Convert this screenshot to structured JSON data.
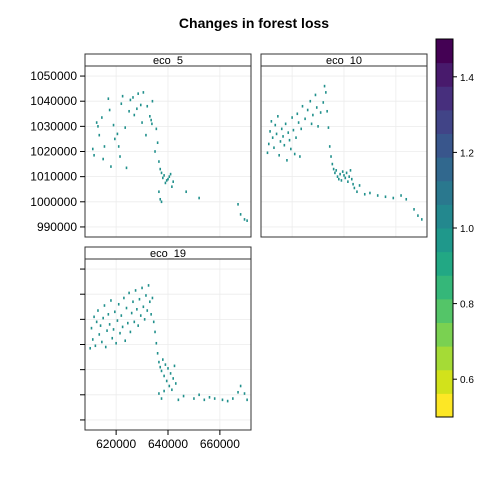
{
  "chart_data": {
    "type": "scatter",
    "title": "Changes in forest loss",
    "xlabel": "",
    "ylabel": "",
    "xlim": [
      608000,
      672000
    ],
    "ylim": [
      986000,
      1054000
    ],
    "x_ticks": [
      620000,
      640000,
      660000
    ],
    "y_ticks": [
      990000,
      1000000,
      1010000,
      1020000,
      1030000,
      1040000,
      1050000
    ],
    "point_color": "#21908C",
    "grid": true,
    "panels": [
      {
        "name": "eco_5",
        "points": [
          [
            611000,
            1021000
          ],
          [
            611500,
            1018500
          ],
          [
            612500,
            1031500
          ],
          [
            613000,
            1030000
          ],
          [
            613500,
            1026500
          ],
          [
            614500,
            1033500
          ],
          [
            615000,
            1017000
          ],
          [
            615500,
            1022000
          ],
          [
            617000,
            1041000
          ],
          [
            617500,
            1036500
          ],
          [
            618000,
            1014000
          ],
          [
            619000,
            1030500
          ],
          [
            619500,
            1025000
          ],
          [
            620500,
            1027000
          ],
          [
            621000,
            1022000
          ],
          [
            621500,
            1018000
          ],
          [
            622000,
            1039000
          ],
          [
            622500,
            1042000
          ],
          [
            623500,
            1029500
          ],
          [
            624000,
            1013500
          ],
          [
            625000,
            1036000
          ],
          [
            625500,
            1040500
          ],
          [
            626500,
            1041500
          ],
          [
            627000,
            1034500
          ],
          [
            628000,
            1037000
          ],
          [
            628500,
            1043000
          ],
          [
            629500,
            1038500
          ],
          [
            630000,
            1031500
          ],
          [
            630500,
            1043500
          ],
          [
            631500,
            1026500
          ],
          [
            632000,
            1038000
          ],
          [
            633000,
            1034000
          ],
          [
            633500,
            1032500
          ],
          [
            633800,
            1031000
          ],
          [
            634000,
            1040000
          ],
          [
            635000,
            1020000
          ],
          [
            635500,
            1029000
          ],
          [
            636000,
            1023500
          ],
          [
            636500,
            1016000
          ],
          [
            637000,
            1013000
          ],
          [
            637500,
            1011500
          ],
          [
            638000,
            1009500
          ],
          [
            638500,
            1010500
          ],
          [
            639000,
            1007500
          ],
          [
            639500,
            1008500
          ],
          [
            640000,
            1009000
          ],
          [
            640500,
            1010000
          ],
          [
            641000,
            1011000
          ],
          [
            641500,
            1006000
          ],
          [
            642000,
            1008000
          ],
          [
            636500,
            1004000
          ],
          [
            637000,
            1001000
          ],
          [
            637500,
            1000000
          ],
          [
            647000,
            1004000
          ],
          [
            652000,
            1001500
          ],
          [
            667000,
            999000
          ],
          [
            668000,
            995000
          ],
          [
            669500,
            993000
          ],
          [
            670500,
            992500
          ]
        ]
      },
      {
        "name": "eco_10",
        "points": [
          [
            610500,
            1019500
          ],
          [
            611000,
            1023000
          ],
          [
            611500,
            1028000
          ],
          [
            612000,
            1032000
          ],
          [
            612500,
            1025500
          ],
          [
            613000,
            1021500
          ],
          [
            613500,
            1030500
          ],
          [
            614000,
            1027000
          ],
          [
            614500,
            1034000
          ],
          [
            615000,
            1018500
          ],
          [
            615500,
            1024000
          ],
          [
            616000,
            1029000
          ],
          [
            616500,
            1026000
          ],
          [
            617000,
            1022500
          ],
          [
            617500,
            1031000
          ],
          [
            618000,
            1016500
          ],
          [
            618500,
            1027500
          ],
          [
            619000,
            1024500
          ],
          [
            619500,
            1021000
          ],
          [
            620000,
            1033500
          ],
          [
            620500,
            1028500
          ],
          [
            621000,
            1019000
          ],
          [
            621500,
            1025500
          ],
          [
            622000,
            1035000
          ],
          [
            622500,
            1031500
          ],
          [
            623000,
            1018000
          ],
          [
            623500,
            1029000
          ],
          [
            624000,
            1038000
          ],
          [
            625000,
            1033000
          ],
          [
            626000,
            1036500
          ],
          [
            627000,
            1040000
          ],
          [
            627500,
            1031000
          ],
          [
            628000,
            1034500
          ],
          [
            629000,
            1042500
          ],
          [
            629500,
            1037500
          ],
          [
            630000,
            1030000
          ],
          [
            631000,
            1035500
          ],
          [
            632000,
            1039500
          ],
          [
            632500,
            1046000
          ],
          [
            633000,
            1043500
          ],
          [
            633500,
            1036000
          ],
          [
            634000,
            1029500
          ],
          [
            634500,
            1022000
          ],
          [
            635000,
            1018000
          ],
          [
            635500,
            1015000
          ],
          [
            636000,
            1013000
          ],
          [
            636500,
            1011500
          ],
          [
            637000,
            1012500
          ],
          [
            637500,
            1010000
          ],
          [
            638000,
            1009000
          ],
          [
            638500,
            1011000
          ],
          [
            639000,
            1008500
          ],
          [
            639500,
            1012000
          ],
          [
            640000,
            1010500
          ],
          [
            640500,
            1009500
          ],
          [
            641000,
            1011500
          ],
          [
            641500,
            1008000
          ],
          [
            642000,
            1010000
          ],
          [
            642500,
            1012500
          ],
          [
            643000,
            1009000
          ],
          [
            643500,
            1007000
          ],
          [
            644000,
            1005500
          ],
          [
            645000,
            1004000
          ],
          [
            646000,
            1006500
          ],
          [
            648000,
            1003000
          ],
          [
            650000,
            1003500
          ],
          [
            653000,
            1002500
          ],
          [
            656000,
            1002000
          ],
          [
            659000,
            1001500
          ],
          [
            662000,
            1002500
          ],
          [
            664000,
            1001000
          ],
          [
            667000,
            997000
          ],
          [
            668500,
            994500
          ],
          [
            670000,
            993000
          ]
        ]
      },
      {
        "name": "eco_19",
        "points": [
          [
            610000,
            1018500
          ],
          [
            610500,
            1026500
          ],
          [
            611000,
            1022000
          ],
          [
            611500,
            1031000
          ],
          [
            612000,
            1019500
          ],
          [
            612500,
            1029000
          ],
          [
            613000,
            1033500
          ],
          [
            613500,
            1024000
          ],
          [
            614000,
            1027500
          ],
          [
            614500,
            1021000
          ],
          [
            615000,
            1030500
          ],
          [
            615500,
            1035500
          ],
          [
            616000,
            1019000
          ],
          [
            616500,
            1025500
          ],
          [
            617000,
            1032000
          ],
          [
            617500,
            1028000
          ],
          [
            618000,
            1037500
          ],
          [
            618500,
            1022500
          ],
          [
            619000,
            1026000
          ],
          [
            619500,
            1033000
          ],
          [
            620000,
            1020500
          ],
          [
            620500,
            1029500
          ],
          [
            621000,
            1036000
          ],
          [
            621500,
            1024500
          ],
          [
            622000,
            1031500
          ],
          [
            622500,
            1027000
          ],
          [
            623000,
            1038500
          ],
          [
            623500,
            1021500
          ],
          [
            624000,
            1034500
          ],
          [
            624500,
            1028500
          ],
          [
            625000,
            1040500
          ],
          [
            625500,
            1025000
          ],
          [
            626000,
            1032500
          ],
          [
            626500,
            1037000
          ],
          [
            627000,
            1029000
          ],
          [
            627500,
            1041500
          ],
          [
            628000,
            1034000
          ],
          [
            628500,
            1027500
          ],
          [
            629000,
            1038000
          ],
          [
            629500,
            1031500
          ],
          [
            630000,
            1042500
          ],
          [
            630500,
            1035000
          ],
          [
            631000,
            1030000
          ],
          [
            631500,
            1039500
          ],
          [
            632000,
            1033500
          ],
          [
            632500,
            1043500
          ],
          [
            633000,
            1037000
          ],
          [
            633500,
            1032000
          ],
          [
            634000,
            1038500
          ],
          [
            634500,
            1029000
          ],
          [
            635000,
            1025000
          ],
          [
            635500,
            1020500
          ],
          [
            636000,
            1016500
          ],
          [
            636500,
            1013000
          ],
          [
            637000,
            1011000
          ],
          [
            637500,
            1009500
          ],
          [
            638000,
            1014000
          ],
          [
            638500,
            1007500
          ],
          [
            639000,
            1012000
          ],
          [
            639500,
            1005500
          ],
          [
            640000,
            1010500
          ],
          [
            640500,
            1003500
          ],
          [
            641000,
            1008500
          ],
          [
            641500,
            1002000
          ],
          [
            642000,
            1006500
          ],
          [
            642500,
            1011500
          ],
          [
            643000,
            1004500
          ],
          [
            636500,
            1000500
          ],
          [
            637500,
            998500
          ],
          [
            638500,
            1001500
          ],
          [
            644000,
            998000
          ],
          [
            646000,
            999500
          ],
          [
            650000,
            998500
          ],
          [
            652000,
            1000000
          ],
          [
            654000,
            998000
          ],
          [
            656000,
            999000
          ],
          [
            658000,
            998500
          ],
          [
            661000,
            998000
          ],
          [
            663000,
            997500
          ],
          [
            665000,
            998500
          ],
          [
            667000,
            1001000
          ],
          [
            668000,
            1003500
          ],
          [
            669500,
            1000500
          ],
          [
            670500,
            998000
          ]
        ]
      }
    ],
    "colorbar": {
      "min": 0.5,
      "max": 1.5,
      "ticks": [
        0.6,
        0.8,
        1.0,
        1.2,
        1.4
      ],
      "tick_labels": [
        "0.6",
        "0.8",
        "1.0",
        "1.2",
        "1.4"
      ],
      "colors": [
        "#FDE725",
        "#D2E21B",
        "#A5DB36",
        "#7AD151",
        "#54C568",
        "#35B779",
        "#22A884",
        "#1F988B",
        "#23888E",
        "#2A788E",
        "#31688E",
        "#39568C",
        "#414487",
        "#472F7D",
        "#481A6C",
        "#440154"
      ]
    }
  }
}
